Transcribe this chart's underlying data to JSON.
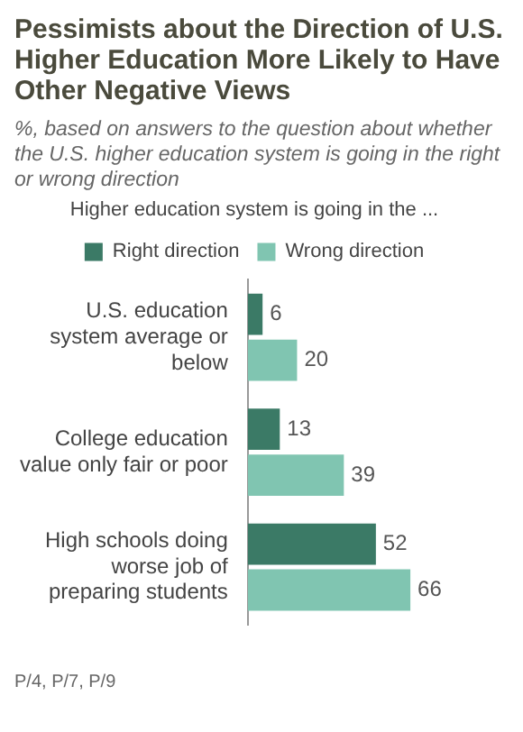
{
  "chart_data": {
    "type": "bar",
    "orientation": "horizontal",
    "title": "Pessimists about the Direction of U.S. Higher Education More Likely to Have Other Negative Views",
    "subtitle": "%, based on answers to the question about whether the U.S. higher education system is going in the right or wrong direction",
    "legend_title": "Higher education system is going in the ...",
    "legend": "top",
    "categories": [
      "U.S. education system average or below",
      "College education value only fair or poor",
      "High schools doing worse job of preparing students"
    ],
    "series": [
      {
        "name": "Right direction",
        "color": "#3b7a66",
        "values": [
          6,
          13,
          52
        ]
      },
      {
        "name": "Wrong direction",
        "color": "#80c5b1",
        "values": [
          20,
          39,
          66
        ]
      }
    ],
    "data_labels": true,
    "grid": false,
    "annotations": [
      "P/4, P/7, P/9"
    ]
  }
}
